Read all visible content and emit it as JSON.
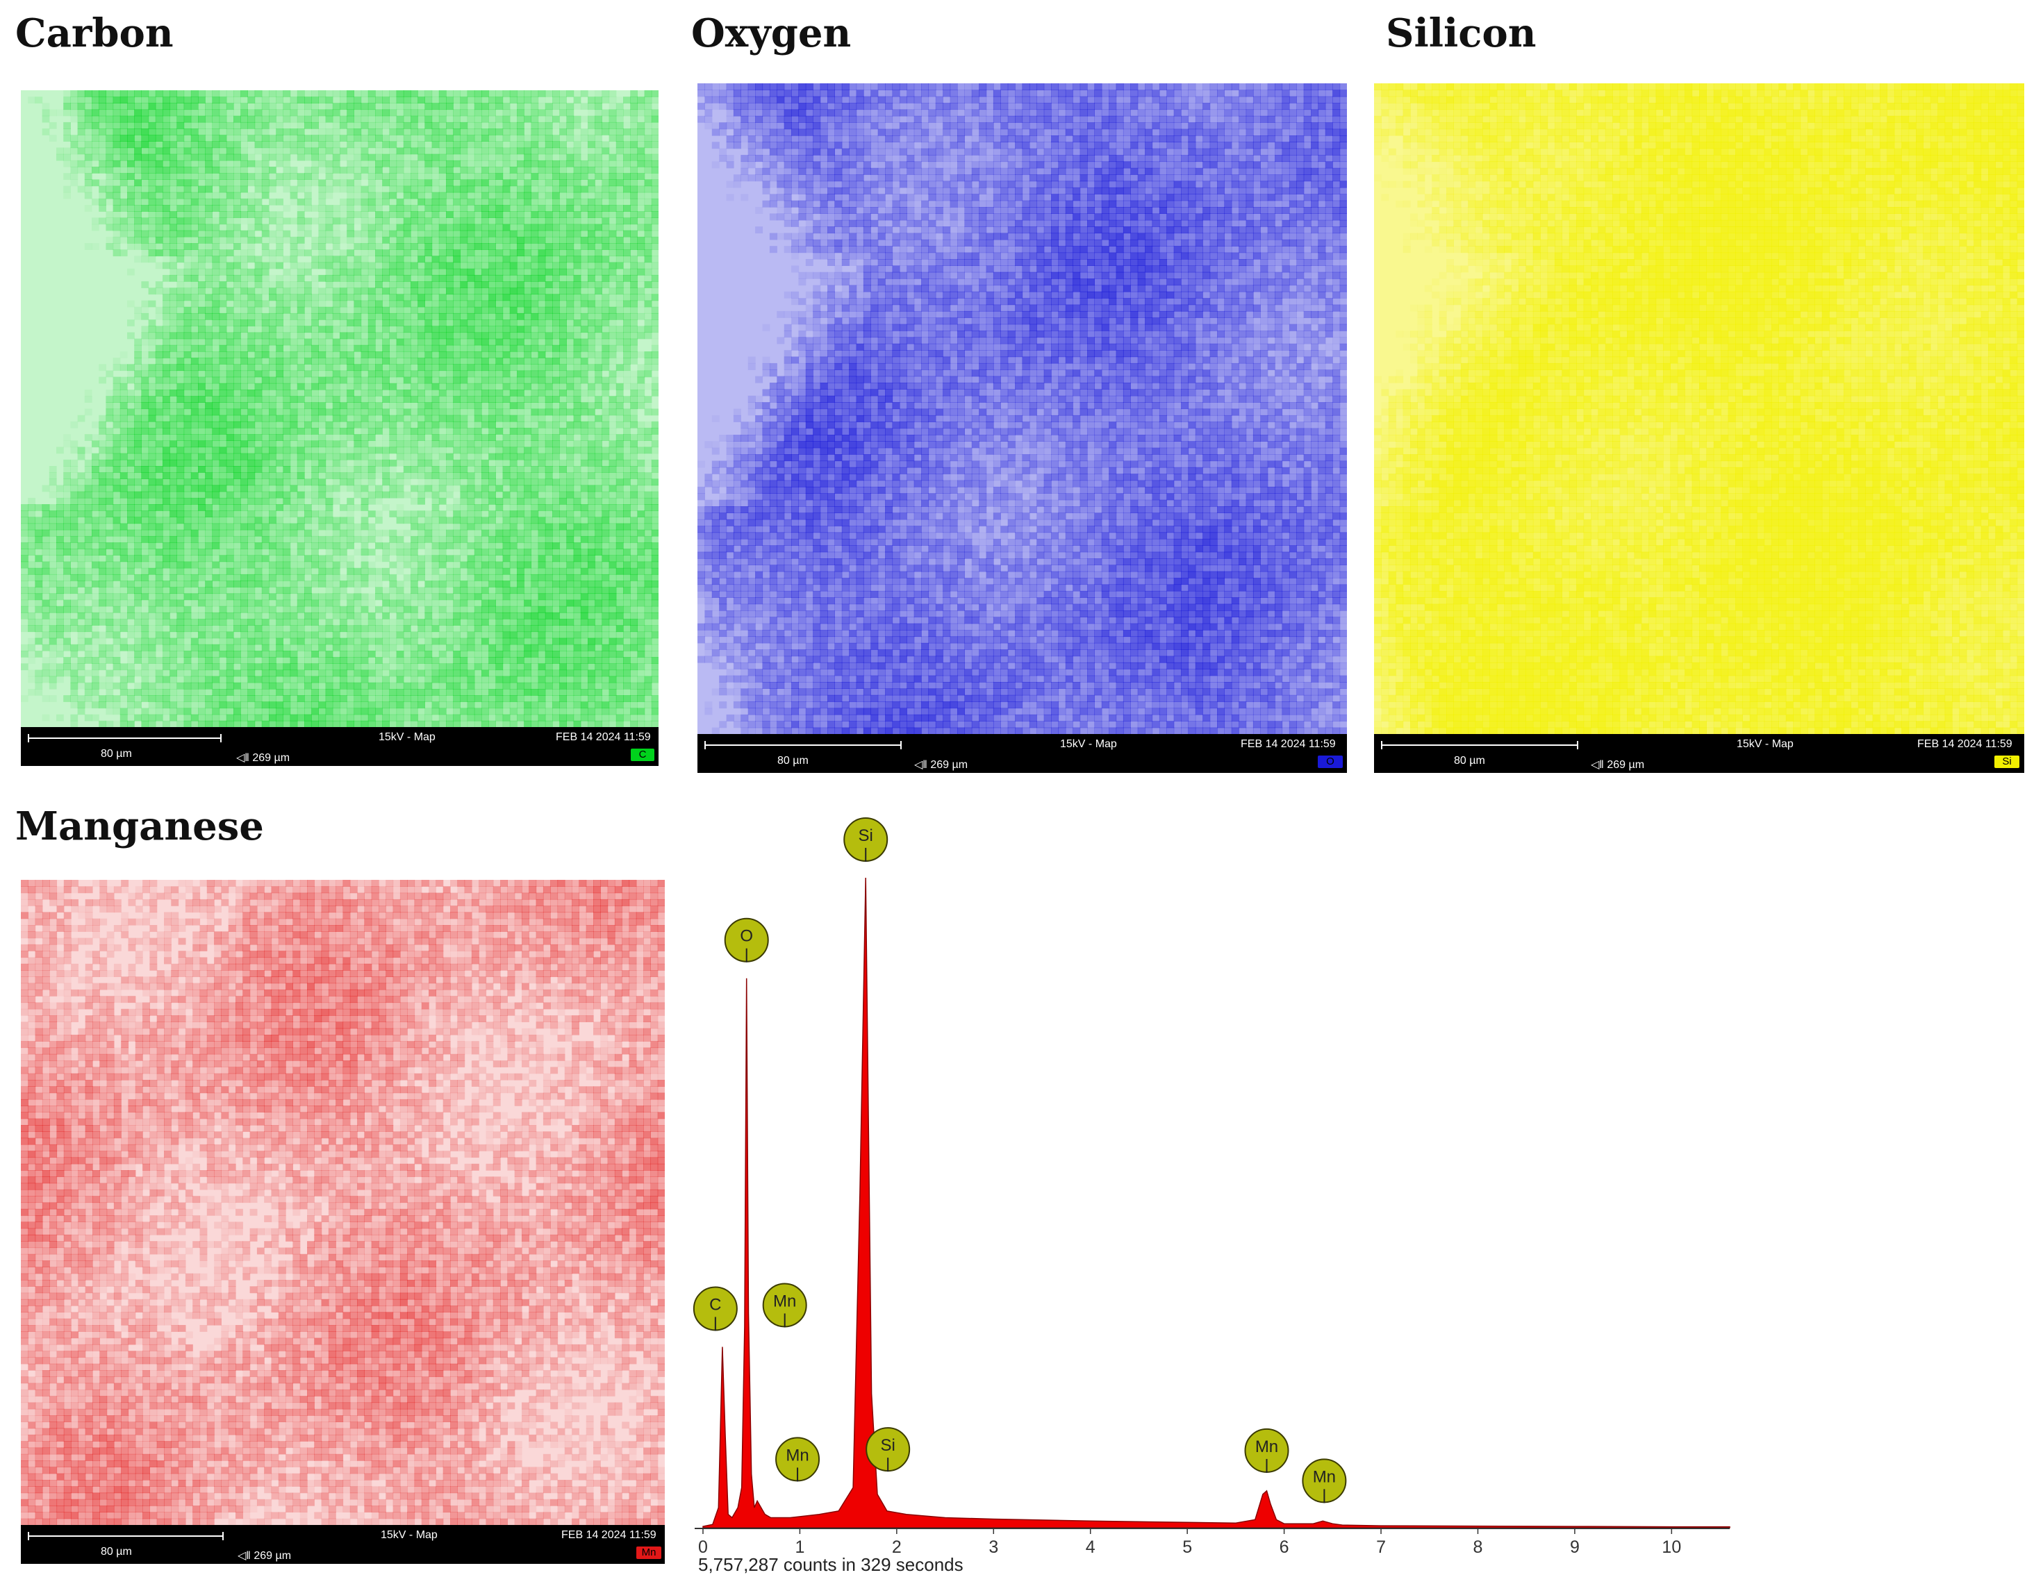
{
  "maps": [
    {
      "key": "carbon",
      "title": "Carbon",
      "color": "#00d21c",
      "scale_label": "80 µm",
      "fov_label": "◁‖ 269 µm",
      "mode_label": "15kV - Map",
      "date_label": "FEB 14 2024 11:59",
      "element_badge": "C"
    },
    {
      "key": "oxygen",
      "title": "Oxygen",
      "color": "#1a1ad8",
      "scale_label": "80 µm",
      "fov_label": "◁‖ 269 µm",
      "mode_label": "15kV - Map",
      "date_label": "FEB 14 2024 11:59",
      "element_badge": "O"
    },
    {
      "key": "silicon",
      "title": "Silicon",
      "color": "#f2f000",
      "scale_label": "80 µm",
      "fov_label": "◁‖ 269 µm",
      "mode_label": "15kV - Map",
      "date_label": "FEB 14 2024 11:59",
      "element_badge": "Si"
    },
    {
      "key": "manganese",
      "title": "Manganese",
      "color": "#e21818",
      "scale_label": "80 µm",
      "fov_label": "◁‖ 269 µm",
      "mode_label": "15kV - Map",
      "date_label": "FEB 14 2024 11:59",
      "element_badge": "Mn"
    }
  ],
  "chart_data": {
    "type": "area",
    "x_ticks": [
      0,
      1,
      2,
      3,
      4,
      5,
      6,
      7,
      8,
      9,
      10
    ],
    "xlim": [
      -0.05,
      10.6
    ],
    "ylim": [
      0,
      100
    ],
    "fill_color": "#ee0000",
    "badge_color": "#b5bd0d",
    "caption": "5,757,287 counts in 329 seconds",
    "spectrum": {
      "x": [
        0.0,
        0.1,
        0.16,
        0.2,
        0.23,
        0.26,
        0.3,
        0.36,
        0.4,
        0.43,
        0.45,
        0.47,
        0.5,
        0.53,
        0.56,
        0.6,
        0.64,
        0.7,
        0.9,
        1.2,
        1.4,
        1.55,
        1.62,
        1.68,
        1.74,
        1.8,
        1.9,
        2.1,
        2.5,
        3.0,
        4.0,
        5.0,
        5.5,
        5.7,
        5.78,
        5.82,
        5.86,
        5.92,
        6.0,
        6.3,
        6.4,
        6.5,
        6.6,
        7.0,
        8.0,
        9.0,
        10.0,
        10.6
      ],
      "y": [
        0.2,
        0.5,
        3.0,
        27.0,
        14.0,
        2.0,
        1.5,
        3.0,
        6.0,
        30.0,
        82.0,
        32.0,
        8.0,
        3.0,
        4.0,
        3.0,
        2.0,
        1.5,
        1.5,
        2.0,
        2.5,
        6.0,
        50.0,
        97.0,
        20.0,
        5.0,
        2.5,
        2.0,
        1.5,
        1.3,
        1.0,
        0.8,
        0.7,
        1.2,
        5.0,
        5.5,
        3.5,
        1.2,
        0.6,
        0.6,
        1.0,
        0.6,
        0.4,
        0.3,
        0.25,
        0.2,
        0.15,
        0.15
      ]
    },
    "peak_labels": [
      {
        "label": "Si",
        "x": 1.68,
        "y": 97
      },
      {
        "label": "O",
        "x": 0.45,
        "y": 82
      },
      {
        "label": "C",
        "x": 0.2,
        "y": 27
      },
      {
        "label": "Mn",
        "x": 0.5,
        "y": 27
      },
      {
        "label": "Mn",
        "x": 0.56,
        "y": 4
      },
      {
        "label": "Si",
        "x": 1.78,
        "y": 6
      },
      {
        "label": "Mn",
        "x": 5.82,
        "y": 5.5
      },
      {
        "label": "Mn",
        "x": 6.4,
        "y": 1.0
      }
    ]
  }
}
